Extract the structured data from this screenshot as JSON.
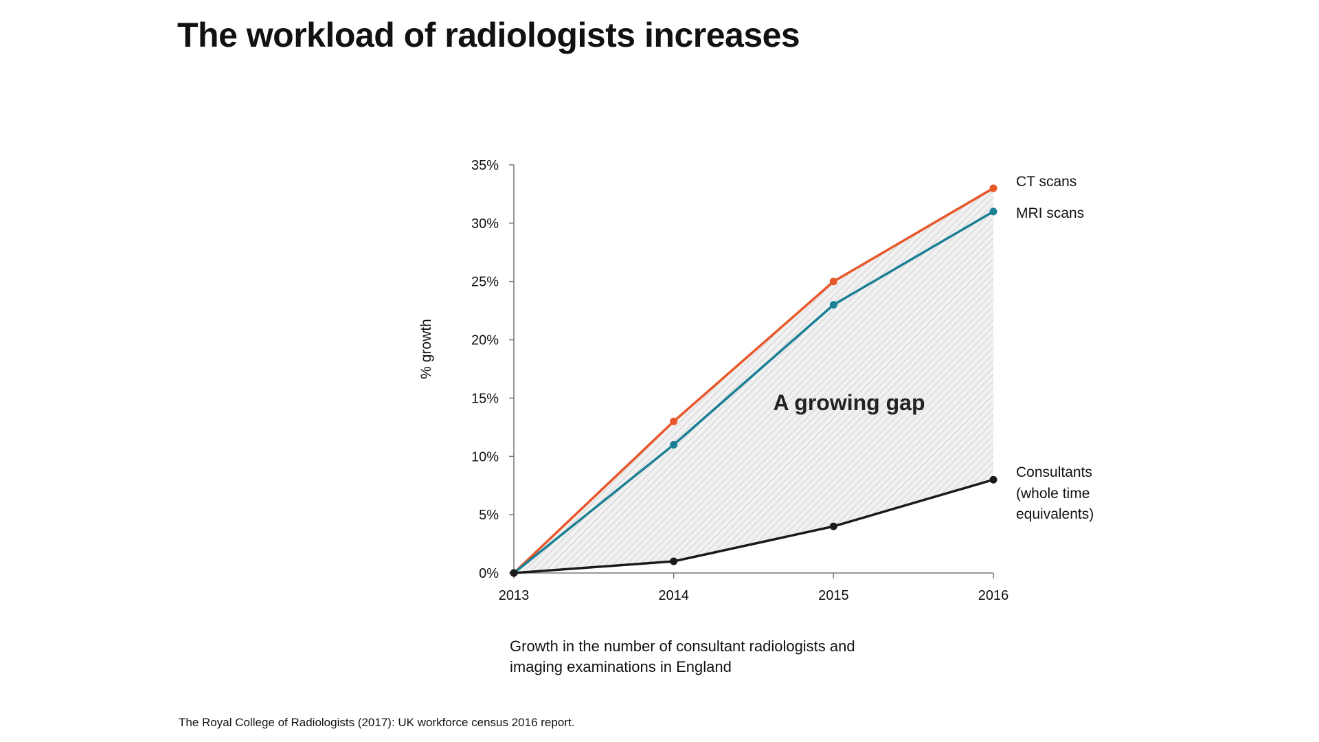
{
  "title": "The workload of radiologists increases",
  "caption": [
    "Growth in the number of consultant radiologists and",
    "imaging examinations in England"
  ],
  "source": "The Royal College of Radiologists (2017): UK workforce census 2016 report.",
  "chart_data": {
    "type": "line",
    "x": [
      "2013",
      "2014",
      "2015",
      "2016"
    ],
    "ylabel": "% growth",
    "ylim": [
      0,
      35
    ],
    "yticks": [
      0,
      5,
      10,
      15,
      20,
      25,
      30,
      35
    ],
    "ytick_labels": [
      "0%",
      "5%",
      "10%",
      "15%",
      "20%",
      "25%",
      "30%",
      "35%"
    ],
    "grid": false,
    "annotation": "A growing gap",
    "shaded_region": "between CT scans and Consultants (hatched grey)",
    "series": [
      {
        "name": "CT scans",
        "label_lines": [
          "CT scans"
        ],
        "values": [
          0,
          13,
          25,
          33
        ],
        "color": "#E8572A"
      },
      {
        "name": "MRI scans",
        "label_lines": [
          "MRI scans"
        ],
        "values": [
          0,
          11,
          23,
          31
        ],
        "color": "#1B7F95"
      },
      {
        "name": "Consultants (whole time equivalents)",
        "label_lines": [
          "Consultants",
          "(whole time",
          "equivalents)"
        ],
        "values": [
          0,
          1,
          4,
          8
        ],
        "color": "#1A1A1A"
      }
    ]
  }
}
